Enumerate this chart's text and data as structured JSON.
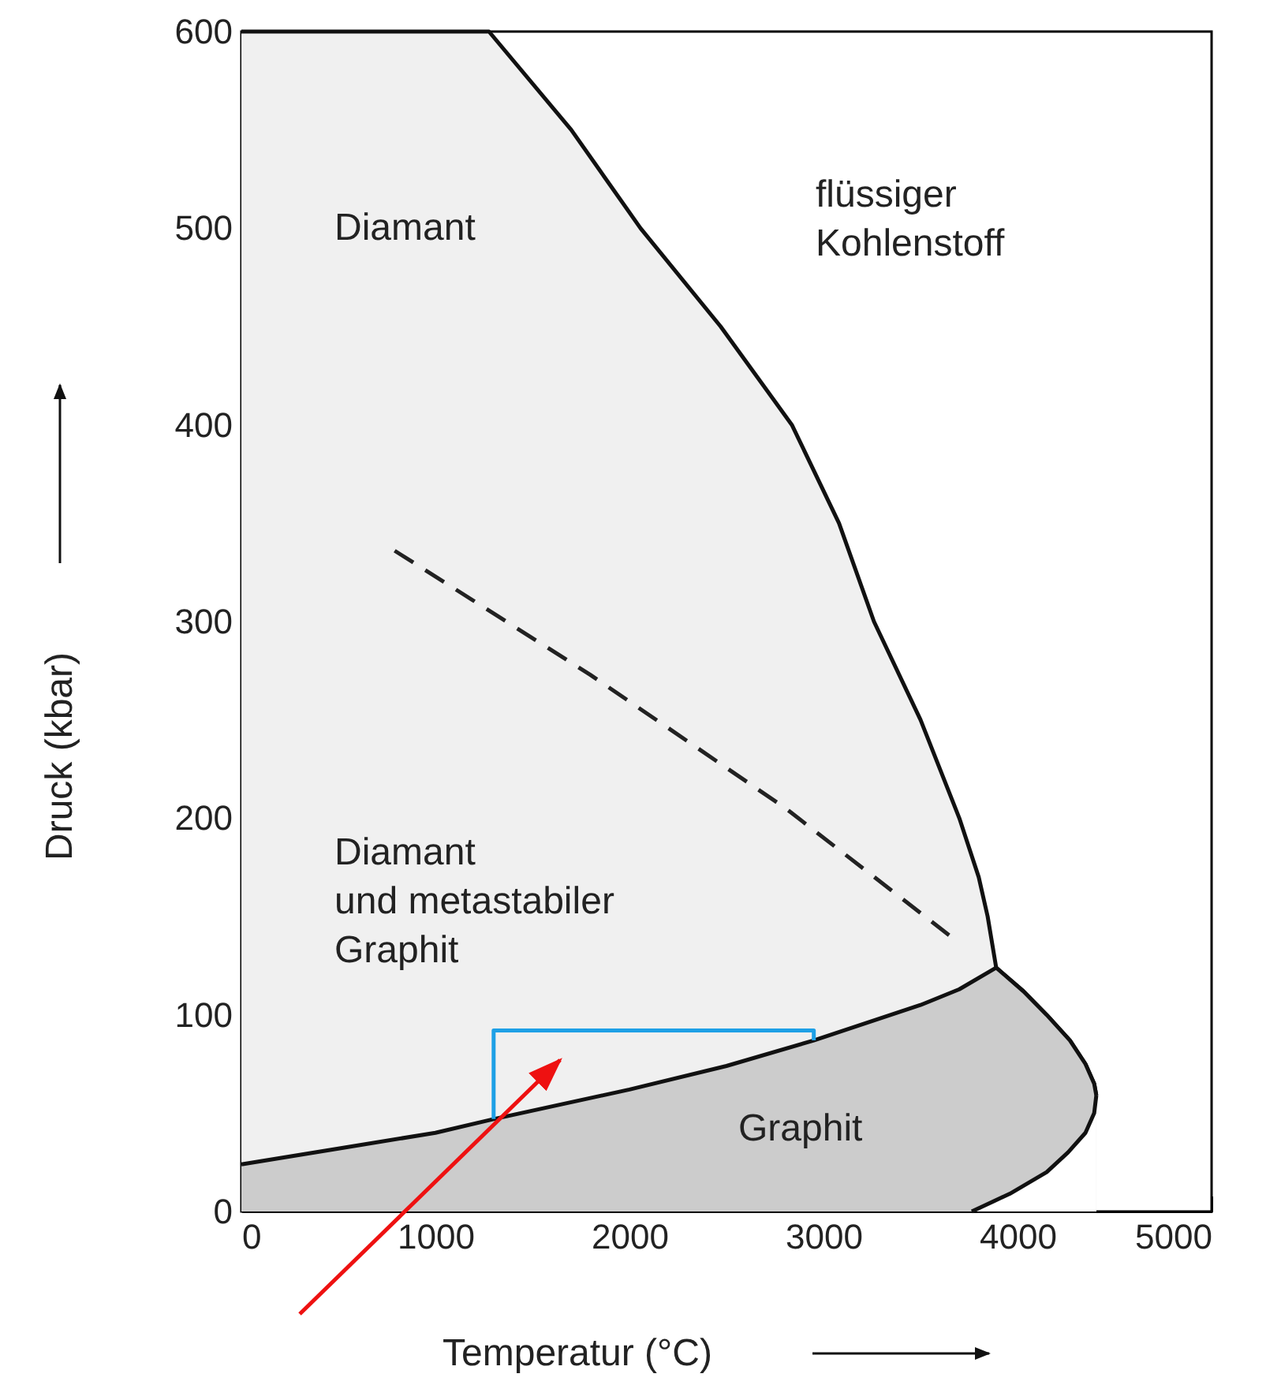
{
  "chart_data": {
    "type": "line",
    "xlabel": "Temperatur (°C)",
    "ylabel": "Druck (kbar)",
    "xlim": [
      0,
      5000
    ],
    "ylim": [
      0,
      600
    ],
    "xticks": [
      0,
      1000,
      2000,
      3000,
      4000,
      5000
    ],
    "yticks": [
      0,
      100,
      200,
      300,
      400,
      500,
      600
    ],
    "series": [
      {
        "type": "area",
        "color": "#f0f0f0",
        "line_style": "solid",
        "x": [
          0,
          1276,
          1700,
          2057,
          2470,
          2837,
          3080,
          3260,
          3500,
          3700,
          3800,
          3846,
          3890,
          4030,
          4150,
          4270,
          4350,
          4395,
          4406
        ],
        "values": [
          600,
          600,
          550,
          500,
          450,
          400,
          350,
          300,
          250,
          200,
          170,
          150,
          124,
          112,
          100,
          87,
          75,
          65,
          59
        ]
      },
      {
        "type": "area",
        "color": "#cccccc",
        "line_style": "solid",
        "x": [
          0,
          500,
          1000,
          1300,
          2000,
          2500,
          2950,
          3500,
          3700,
          3890,
          4030,
          4150,
          4270,
          4350,
          4395,
          4406
        ],
        "values": [
          24,
          32,
          40,
          47,
          62,
          74,
          87,
          105,
          113,
          124,
          112,
          100,
          87,
          75,
          65,
          59
        ]
      },
      {
        "type": "area",
        "color": "#ffffff",
        "line_style": "solid",
        "x": [
          3764,
          3960,
          4150,
          4260,
          4350,
          4395,
          4406
        ],
        "values": [
          0,
          9,
          20,
          30,
          40,
          50,
          59
        ]
      },
      {
        "color": "#1ea0e6",
        "line_style": "solid",
        "x": [
          1300,
          1300,
          2950,
          2950
        ],
        "values": [
          47,
          92,
          92,
          87
        ]
      },
      {
        "color": "#222222",
        "line_style": "dashed",
        "x": [
          790,
          1797,
          2805,
          3667
        ],
        "values": [
          336,
          273,
          205,
          139
        ]
      }
    ],
    "annotations": [
      "Diamant",
      "flüssiger\nKohlenstoff",
      "Diamant\nund metastabiler\nGraphit",
      "Graphit"
    ]
  }
}
